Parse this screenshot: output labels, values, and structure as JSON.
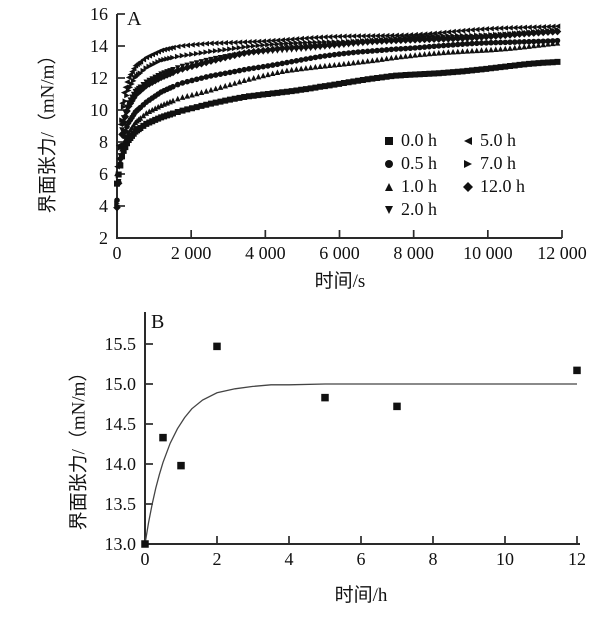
{
  "figure": {
    "background": "#ffffff",
    "ink": "#111111",
    "axis_color": "#2a2a2a",
    "curve_color": "#444444"
  },
  "chart_data": [
    {
      "id": "A",
      "type": "scatter",
      "panel_label": "A",
      "xlabel": "时间/s",
      "ylabel": "界面张力/（mN/m）",
      "xlim": [
        0,
        12000
      ],
      "ylim": [
        2,
        16
      ],
      "xticks": [
        0,
        2000,
        4000,
        6000,
        8000,
        10000,
        12000
      ],
      "xtick_labels": [
        "0",
        "2 000",
        "4 000",
        "6 000",
        "8 000",
        "10 000",
        "12 000"
      ],
      "yticks": [
        2,
        4,
        6,
        8,
        10,
        12,
        14,
        16
      ],
      "ytick_labels": [
        "2",
        "4",
        "6",
        "8",
        "10",
        "12",
        "14",
        "16"
      ],
      "grid": false,
      "legend": {
        "position": "inside-lower-right",
        "columns": [
          [
            {
              "marker": "square",
              "label": "0.0 h"
            },
            {
              "marker": "circle",
              "label": "0.5 h"
            },
            {
              "marker": "triangle-up",
              "label": "1.0 h"
            },
            {
              "marker": "triangle-down",
              "label": "2.0 h"
            }
          ],
          [
            {
              "marker": "triangle-left",
              "label": "5.0 h"
            },
            {
              "marker": "triangle-right",
              "label": "7.0 h"
            },
            {
              "marker": "diamond",
              "label": "12.0 h"
            }
          ]
        ]
      },
      "series": [
        {
          "name": "0.0 h",
          "marker": "square",
          "points": [
            [
              0,
              5.4
            ],
            [
              150,
              7.3
            ],
            [
              300,
              8.1
            ],
            [
              500,
              8.7
            ],
            [
              800,
              9.2
            ],
            [
              1200,
              9.6
            ],
            [
              1700,
              9.95
            ],
            [
              2500,
              10.35
            ],
            [
              3500,
              10.8
            ],
            [
              4500,
              11.15
            ],
            [
              5500,
              11.5
            ],
            [
              6500,
              11.8
            ],
            [
              7500,
              12.1
            ],
            [
              8500,
              12.3
            ],
            [
              9500,
              12.5
            ],
            [
              10500,
              12.7
            ],
            [
              11200,
              12.85
            ],
            [
              12000,
              13.0
            ]
          ]
        },
        {
          "name": "0.5 h",
          "marker": "circle",
          "points": [
            [
              0,
              4.4
            ],
            [
              150,
              8.2
            ],
            [
              300,
              9.2
            ],
            [
              500,
              9.9
            ],
            [
              800,
              10.5
            ],
            [
              1200,
              11.1
            ],
            [
              1700,
              11.6
            ],
            [
              2500,
              12.1
            ],
            [
              3500,
              12.6
            ],
            [
              4500,
              12.95
            ],
            [
              5500,
              13.3
            ],
            [
              6500,
              13.6
            ],
            [
              7500,
              13.85
            ],
            [
              8500,
              14.0
            ],
            [
              9500,
              14.1
            ],
            [
              10500,
              14.2
            ],
            [
              11200,
              14.3
            ],
            [
              12000,
              14.4
            ]
          ]
        },
        {
          "name": "1.0 h",
          "marker": "triangle-up",
          "points": [
            [
              0,
              6.0
            ],
            [
              150,
              7.7
            ],
            [
              300,
              8.5
            ],
            [
              500,
              9.2
            ],
            [
              800,
              9.8
            ],
            [
              1200,
              10.3
            ],
            [
              1700,
              10.8
            ],
            [
              2500,
              11.3
            ],
            [
              3500,
              11.9
            ],
            [
              4500,
              12.4
            ],
            [
              5500,
              12.75
            ],
            [
              6500,
              13.05
            ],
            [
              7500,
              13.3
            ],
            [
              8500,
              13.5
            ],
            [
              9500,
              13.7
            ],
            [
              10500,
              13.9
            ],
            [
              11200,
              14.05
            ],
            [
              12000,
              14.2
            ]
          ]
        },
        {
          "name": "2.0 h",
          "marker": "triangle-down",
          "points": [
            [
              0,
              3.9
            ],
            [
              150,
              9.3
            ],
            [
              300,
              10.4
            ],
            [
              500,
              11.2
            ],
            [
              800,
              11.8
            ],
            [
              1200,
              12.3
            ],
            [
              1700,
              12.7
            ],
            [
              2500,
              13.1
            ],
            [
              3500,
              13.5
            ],
            [
              4500,
              13.75
            ],
            [
              5500,
              13.95
            ],
            [
              6500,
              14.1
            ],
            [
              7500,
              14.25
            ],
            [
              8500,
              14.4
            ],
            [
              9500,
              14.5
            ],
            [
              10500,
              14.6
            ],
            [
              11200,
              14.7
            ],
            [
              12000,
              14.85
            ]
          ]
        },
        {
          "name": "5.0 h",
          "marker": "triangle-left",
          "points": [
            [
              0,
              6.5
            ],
            [
              150,
              10.9
            ],
            [
              300,
              12.0
            ],
            [
              500,
              12.8
            ],
            [
              800,
              13.3
            ],
            [
              1200,
              13.7
            ],
            [
              1700,
              13.95
            ],
            [
              2500,
              14.15
            ],
            [
              3500,
              14.3
            ],
            [
              4500,
              14.4
            ],
            [
              5500,
              14.5
            ],
            [
              6500,
              14.6
            ],
            [
              7500,
              14.7
            ],
            [
              8500,
              14.8
            ],
            [
              9500,
              14.95
            ],
            [
              10500,
              15.1
            ],
            [
              11200,
              15.2
            ],
            [
              12000,
              15.3
            ]
          ]
        },
        {
          "name": "7.0 h",
          "marker": "triangle-right",
          "points": [
            [
              0,
              4.1
            ],
            [
              150,
              9.9
            ],
            [
              300,
              11.1
            ],
            [
              500,
              12.0
            ],
            [
              800,
              12.6
            ],
            [
              1200,
              13.1
            ],
            [
              1700,
              13.4
            ],
            [
              2500,
              13.7
            ],
            [
              3500,
              13.95
            ],
            [
              4500,
              14.1
            ],
            [
              5500,
              14.25
            ],
            [
              6500,
              14.35
            ],
            [
              7500,
              14.45
            ],
            [
              8500,
              14.55
            ],
            [
              9500,
              14.65
            ],
            [
              10500,
              14.8
            ],
            [
              11200,
              14.9
            ],
            [
              12000,
              15.0
            ]
          ]
        },
        {
          "name": "12.0 h",
          "marker": "diamond",
          "points": [
            [
              0,
              3.9
            ],
            [
              150,
              9.0
            ],
            [
              300,
              10.2
            ],
            [
              500,
              11.0
            ],
            [
              800,
              11.6
            ],
            [
              1200,
              12.1
            ],
            [
              1700,
              12.55
            ],
            [
              2500,
              13.0
            ],
            [
              3500,
              13.55
            ],
            [
              4500,
              13.9
            ],
            [
              5500,
              14.05
            ],
            [
              6500,
              14.2
            ],
            [
              7500,
              14.3
            ],
            [
              8500,
              14.45
            ],
            [
              9500,
              14.55
            ],
            [
              10500,
              14.65
            ],
            [
              11200,
              14.75
            ],
            [
              12000,
              14.9
            ]
          ]
        }
      ]
    },
    {
      "id": "B",
      "type": "scatter",
      "panel_label": "B",
      "xlabel": "时间/h",
      "ylabel": "界面张力/（mN/m）",
      "xlim": [
        0,
        12
      ],
      "ylim": [
        13.0,
        15.5
      ],
      "xticks": [
        0,
        2,
        4,
        6,
        8,
        10,
        12
      ],
      "xtick_labels": [
        "0",
        "2",
        "4",
        "6",
        "8",
        "10",
        "12"
      ],
      "yticks": [
        13.0,
        13.5,
        14.0,
        14.5,
        15.0,
        15.5
      ],
      "ytick_labels": [
        "13.0",
        "13.5",
        "14.0",
        "14.5",
        "15.0",
        "15.5"
      ],
      "grid": false,
      "points_marker": "square",
      "points": [
        [
          0,
          13.0
        ],
        [
          0.5,
          14.33
        ],
        [
          1,
          13.98
        ],
        [
          2,
          15.47
        ],
        [
          5,
          14.83
        ],
        [
          7,
          14.72
        ],
        [
          12,
          15.17
        ]
      ],
      "fit_curve": {
        "plateau": 15.0,
        "points": [
          [
            0,
            13.0
          ],
          [
            0.1,
            13.27
          ],
          [
            0.2,
            13.5
          ],
          [
            0.3,
            13.7
          ],
          [
            0.4,
            13.87
          ],
          [
            0.5,
            14.02
          ],
          [
            0.7,
            14.26
          ],
          [
            0.9,
            14.44
          ],
          [
            1.1,
            14.58
          ],
          [
            1.3,
            14.69
          ],
          [
            1.6,
            14.8
          ],
          [
            2,
            14.89
          ],
          [
            2.5,
            14.94
          ],
          [
            3,
            14.97
          ],
          [
            3.5,
            14.99
          ],
          [
            4,
            14.99
          ],
          [
            5,
            15.0
          ],
          [
            6,
            15.0
          ],
          [
            8,
            15.0
          ],
          [
            10,
            15.0
          ],
          [
            12,
            15.0
          ]
        ]
      }
    }
  ]
}
